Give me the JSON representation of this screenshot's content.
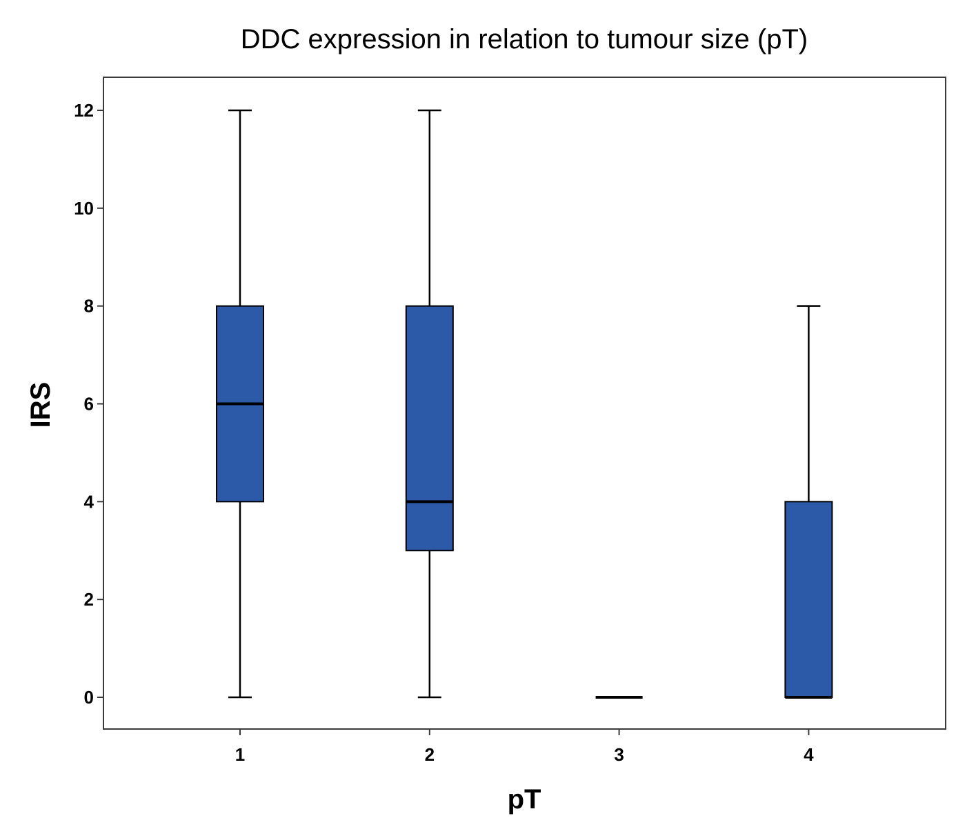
{
  "chart_data": {
    "type": "box",
    "title": "DDC expression in relation to tumour size (pT)",
    "xlabel": "pT",
    "ylabel": "IRS",
    "categories": [
      "1",
      "2",
      "3",
      "4"
    ],
    "boxes": [
      {
        "category": "1",
        "min": 0,
        "q1": 4,
        "median": 6,
        "q3": 8,
        "max": 12
      },
      {
        "category": "2",
        "min": 0,
        "q1": 3,
        "median": 4,
        "q3": 8,
        "max": 12
      },
      {
        "category": "3",
        "min": 0,
        "q1": 0,
        "median": 0,
        "q3": 0,
        "max": 0
      },
      {
        "category": "4",
        "min": 0,
        "q1": 0,
        "median": 0,
        "q3": 4,
        "max": 8
      }
    ],
    "yticks": [
      "0",
      "2",
      "4",
      "6",
      "8",
      "10",
      "12"
    ],
    "ylim": [
      -0.65,
      12.65
    ],
    "grid": false,
    "colors": {
      "box_fill": "#2d5aa8",
      "stroke": "#000000",
      "frame": "#3a3a3a"
    }
  }
}
